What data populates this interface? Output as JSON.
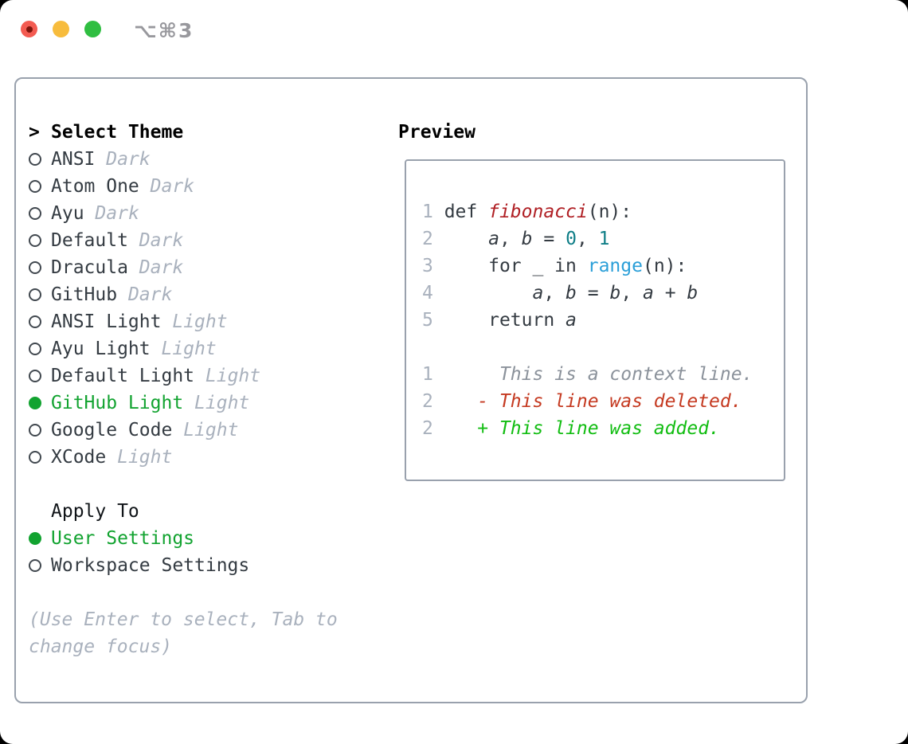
{
  "titlebar": {
    "title": "⌥⌘3"
  },
  "panel": {
    "select_theme": {
      "cursor": ">",
      "header": "Select Theme",
      "items": [
        {
          "name": "ANSI",
          "variant": "Dark",
          "selected": false
        },
        {
          "name": "Atom One",
          "variant": "Dark",
          "selected": false
        },
        {
          "name": "Ayu",
          "variant": "Dark",
          "selected": false
        },
        {
          "name": "Default",
          "variant": "Dark",
          "selected": false
        },
        {
          "name": "Dracula",
          "variant": "Dark",
          "selected": false
        },
        {
          "name": "GitHub",
          "variant": "Dark",
          "selected": false
        },
        {
          "name": "ANSI Light",
          "variant": "Light",
          "selected": false
        },
        {
          "name": "Ayu Light",
          "variant": "Light",
          "selected": false
        },
        {
          "name": "Default Light",
          "variant": "Light",
          "selected": false
        },
        {
          "name": "GitHub Light",
          "variant": "Light",
          "selected": true
        },
        {
          "name": "Google Code",
          "variant": "Light",
          "selected": false
        },
        {
          "name": "XCode",
          "variant": "Light",
          "selected": false
        }
      ]
    },
    "apply_to": {
      "header": "Apply To",
      "options": [
        {
          "name": "User Settings",
          "selected": true
        },
        {
          "name": "Workspace Settings",
          "selected": false
        }
      ]
    },
    "hint": "(Use Enter to select, Tab to change focus)",
    "preview": {
      "header": "Preview",
      "lines": [
        {
          "num": "1",
          "tokens": [
            {
              "t": " def ",
              "s": "code"
            },
            {
              "t": "fibonacci",
              "s": "fn"
            },
            {
              "t": "(n):",
              "s": "code"
            }
          ]
        },
        {
          "num": "2",
          "tokens": [
            {
              "t": "     ",
              "s": "code"
            },
            {
              "t": "a",
              "s": "var"
            },
            {
              "t": ", ",
              "s": "code"
            },
            {
              "t": "b",
              "s": "var"
            },
            {
              "t": " = ",
              "s": "code"
            },
            {
              "t": "0",
              "s": "num"
            },
            {
              "t": ", ",
              "s": "code"
            },
            {
              "t": "1",
              "s": "num"
            }
          ]
        },
        {
          "num": "3",
          "tokens": [
            {
              "t": "     for _ in ",
              "s": "code"
            },
            {
              "t": "range",
              "s": "call"
            },
            {
              "t": "(n):",
              "s": "code"
            }
          ]
        },
        {
          "num": "4",
          "tokens": [
            {
              "t": "         ",
              "s": "code"
            },
            {
              "t": "a",
              "s": "var"
            },
            {
              "t": ", ",
              "s": "code"
            },
            {
              "t": "b",
              "s": "var"
            },
            {
              "t": " = ",
              "s": "code"
            },
            {
              "t": "b",
              "s": "var"
            },
            {
              "t": ", ",
              "s": "code"
            },
            {
              "t": "a",
              "s": "var"
            },
            {
              "t": " + ",
              "s": "code"
            },
            {
              "t": "b",
              "s": "var"
            }
          ]
        },
        {
          "num": "5",
          "tokens": [
            {
              "t": "     return ",
              "s": "code"
            },
            {
              "t": "a",
              "s": "var"
            }
          ]
        },
        {
          "num": "",
          "tokens": []
        },
        {
          "num": "1",
          "tokens": [
            {
              "t": "      This is a context line.",
              "s": "ctx"
            }
          ]
        },
        {
          "num": "2",
          "tokens": [
            {
              "t": "    ",
              "s": "code"
            },
            {
              "t": "- This line was deleted.",
              "s": "del"
            }
          ]
        },
        {
          "num": "2",
          "tokens": [
            {
              "t": "    ",
              "s": "code"
            },
            {
              "t": "+ This line was added.",
              "s": "add"
            }
          ]
        }
      ]
    }
  },
  "colors": {
    "panel_border": "#99a1ad",
    "selection_green": "#12a330",
    "added_green": "#12bd12",
    "deleted_red": "#c53a21",
    "function_red": "#b02025",
    "number_teal": "#0f7e87",
    "call_blue": "#2b9fd8",
    "muted_gray": "#a9b1bd",
    "traffic_red": "#f35b51",
    "traffic_yellow": "#f7bc3d",
    "traffic_green": "#2fbe41"
  }
}
